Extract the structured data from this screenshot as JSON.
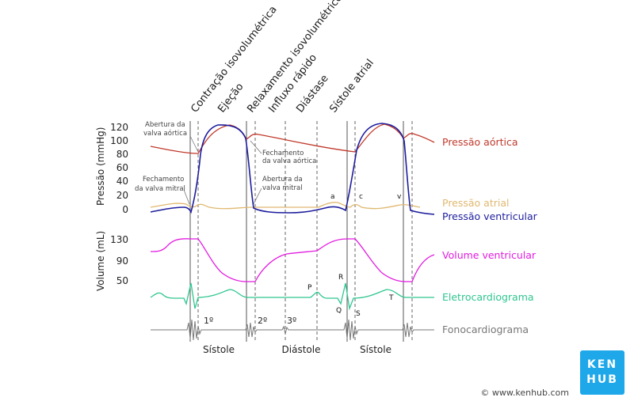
{
  "phases": [
    "Contração isovolumétrica",
    "Ejeção",
    "Relaxamento isovolumétrico",
    "Influxo rápido",
    "Diástase",
    "Sístole atrial"
  ],
  "pressure_axis": {
    "label": "Pressão (mmHg)",
    "ticks": [
      "120",
      "100",
      "80",
      "60",
      "40",
      "20",
      "0"
    ]
  },
  "volume_axis": {
    "label": "Volume (mL)",
    "ticks": [
      "130",
      "90",
      "50"
    ]
  },
  "annotations": {
    "aortic_open_1": "Abertura da",
    "aortic_open_2": "valva aórtica",
    "mitral_close_1": "Fechamento",
    "mitral_close_2": "da valva mitral",
    "aortic_close_1": "Fechamento",
    "aortic_close_2": "da valva aórtica",
    "mitral_open_1": "Abertura da",
    "mitral_open_2": "valva mitral"
  },
  "wave_labels": {
    "a": "a",
    "c": "c",
    "v": "v",
    "P": "P",
    "Q": "Q",
    "R": "R",
    "S": "S",
    "T": "T"
  },
  "series_labels": {
    "aortic": "Pressão aórtica",
    "atrial": "Pressão atrial",
    "ventricular": "Pressão ventricular",
    "volume": "Volume ventricular",
    "ecg": "Eletrocardiograma",
    "phono": "Fonocardiograma"
  },
  "heart_sounds": [
    "1º",
    "2º",
    "3º"
  ],
  "periods": [
    "Sístole",
    "Diástole",
    "Sístole"
  ],
  "footer": "© www.kenhub.com",
  "logo": {
    "line1": "KEN",
    "line2": "HUB"
  },
  "colors": {
    "aortic": "#c0392b",
    "atrial": "#e0b870",
    "ventricular": "#1d1d9e",
    "volume": "#e21ce0",
    "ecg": "#2ec68f",
    "phono": "#777777",
    "logo": "#1ea8ea"
  }
}
